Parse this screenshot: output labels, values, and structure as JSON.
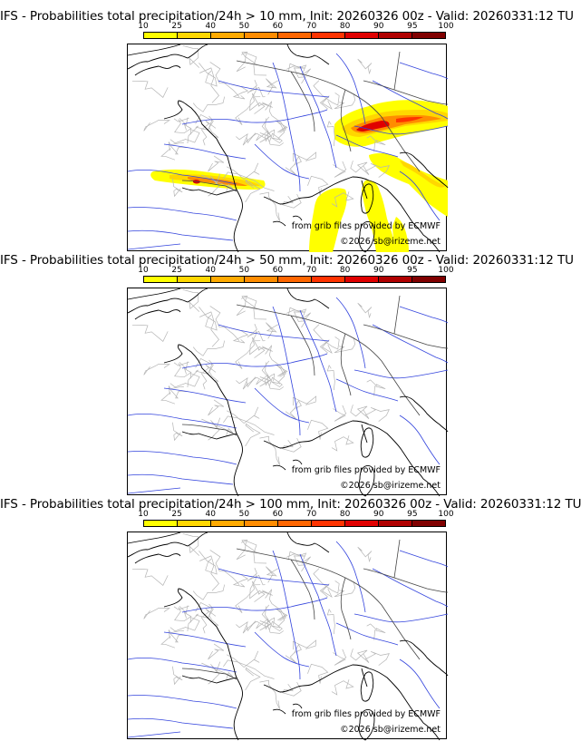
{
  "colorbar": {
    "ticks": [
      "10",
      "25",
      "40",
      "50",
      "60",
      "70",
      "80",
      "90",
      "95",
      "100"
    ],
    "colors": [
      "#ffff00",
      "#ffd700",
      "#ffaa00",
      "#ff8c00",
      "#ff6600",
      "#ff3300",
      "#e00000",
      "#b00000",
      "#800000"
    ]
  },
  "panels": [
    {
      "title": "IFS - Probabilities total precipitation/24h > 10 mm, Init: 20260326 00z - Valid: 20260331:12 TU",
      "credit_source": "from grib files provided by ECMWF",
      "credit_site": "©2026 sb@irizeme.net",
      "has_precip": true
    },
    {
      "title": "IFS - Probabilities total precipitation/24h > 50 mm, Init: 20260326 00z - Valid: 20260331:12 TU",
      "credit_source": "from grib files provided by ECMWF",
      "credit_site": "©2026 sb@irizeme.net",
      "has_precip": false
    },
    {
      "title": "IFS - Probabilities total precipitation/24h > 100 mm, Init: 20260326 00z - Valid: 20260331:12 TU",
      "credit_source": "from grib files provided by ECMWF",
      "credit_site": "©2026 sb@irizeme.net",
      "has_precip": false
    }
  ]
}
